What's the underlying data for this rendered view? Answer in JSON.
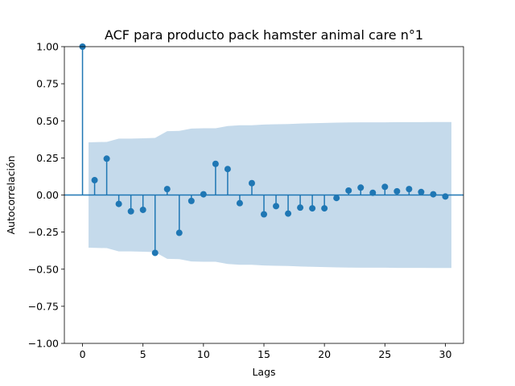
{
  "chart_data": {
    "type": "scatter",
    "subtype": "stem",
    "title": "ACF para producto pack hamster  animal care  n°1",
    "xlabel": "Lags",
    "ylabel": "Autocorrelación",
    "xlim": [
      -1.5,
      31.5
    ],
    "ylim": [
      -1.0,
      1.0
    ],
    "xticks": [
      0,
      5,
      10,
      15,
      20,
      25,
      30
    ],
    "xtick_labels": [
      "0",
      "5",
      "10",
      "15",
      "20",
      "25",
      "30"
    ],
    "yticks": [
      -1.0,
      -0.75,
      -0.5,
      -0.25,
      0.0,
      0.25,
      0.5,
      0.75,
      1.0
    ],
    "ytick_labels": [
      "−1.00",
      "−0.75",
      "−0.50",
      "−0.25",
      "0.00",
      "0.25",
      "0.50",
      "0.75",
      "1.00"
    ],
    "lags": [
      0,
      1,
      2,
      3,
      4,
      5,
      6,
      7,
      8,
      9,
      10,
      11,
      12,
      13,
      14,
      15,
      16,
      17,
      18,
      19,
      20,
      21,
      22,
      23,
      24,
      25,
      26,
      27,
      28,
      29,
      30
    ],
    "acf": [
      1.0,
      0.1,
      0.245,
      -0.06,
      -0.11,
      -0.1,
      -0.39,
      0.04,
      -0.255,
      -0.04,
      0.005,
      0.21,
      0.175,
      -0.055,
      0.08,
      -0.13,
      -0.075,
      -0.125,
      -0.085,
      -0.09,
      -0.09,
      -0.02,
      0.03,
      0.05,
      0.015,
      0.055,
      0.025,
      0.04,
      0.02,
      0.005,
      -0.01
    ],
    "confint_upper": [
      null,
      0.355,
      0.358,
      0.38,
      0.38,
      0.382,
      0.385,
      0.43,
      0.432,
      0.448,
      0.45,
      0.45,
      0.465,
      0.47,
      0.47,
      0.475,
      0.477,
      0.478,
      0.482,
      0.484,
      0.486,
      0.488,
      0.489,
      0.49,
      0.49,
      0.49,
      0.491,
      0.491,
      0.491,
      0.492,
      0.492
    ],
    "colors": {
      "stem": "#1f77b4",
      "confint": "#c5daeb",
      "zero_line": "#1f77b4"
    },
    "grid": false
  }
}
